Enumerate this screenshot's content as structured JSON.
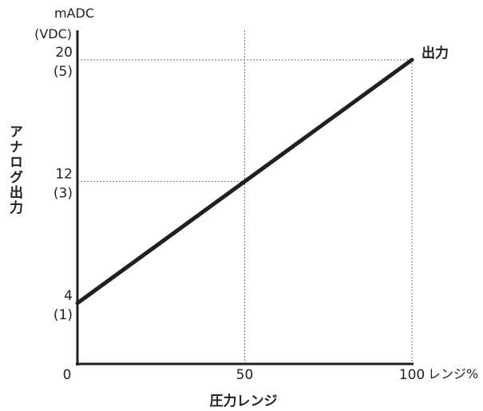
{
  "chart_data": {
    "type": "line",
    "xlabel": "圧力レンジ",
    "x_unit": "レンジ%",
    "ylabel": "アナログ出力",
    "y_unit_primary": "mADC",
    "y_unit_secondary": "(VDC)",
    "xlim": [
      0,
      100
    ],
    "ylim": [
      0,
      22
    ],
    "x_ticks": [
      {
        "value": 0,
        "label": "0"
      },
      {
        "value": 50,
        "label": "50"
      },
      {
        "value": 100,
        "label": "100"
      }
    ],
    "y_ticks": [
      {
        "value": 4,
        "label": "4",
        "sublabel": "(1)"
      },
      {
        "value": 12,
        "label": "12",
        "sublabel": "(3)"
      },
      {
        "value": 20,
        "label": "20",
        "sublabel": "(5)"
      }
    ],
    "series": [
      {
        "name": "出力",
        "x": [
          0,
          50,
          100
        ],
        "y": [
          4,
          12,
          20
        ],
        "color": "#231f20"
      }
    ],
    "reference_lines": [
      {
        "type": "vertical",
        "x": 50
      },
      {
        "type": "vertical",
        "x": 100
      },
      {
        "type": "horizontal",
        "y": 12
      },
      {
        "type": "horizontal",
        "y": 20
      }
    ],
    "grid": false,
    "legend": "line-end"
  }
}
